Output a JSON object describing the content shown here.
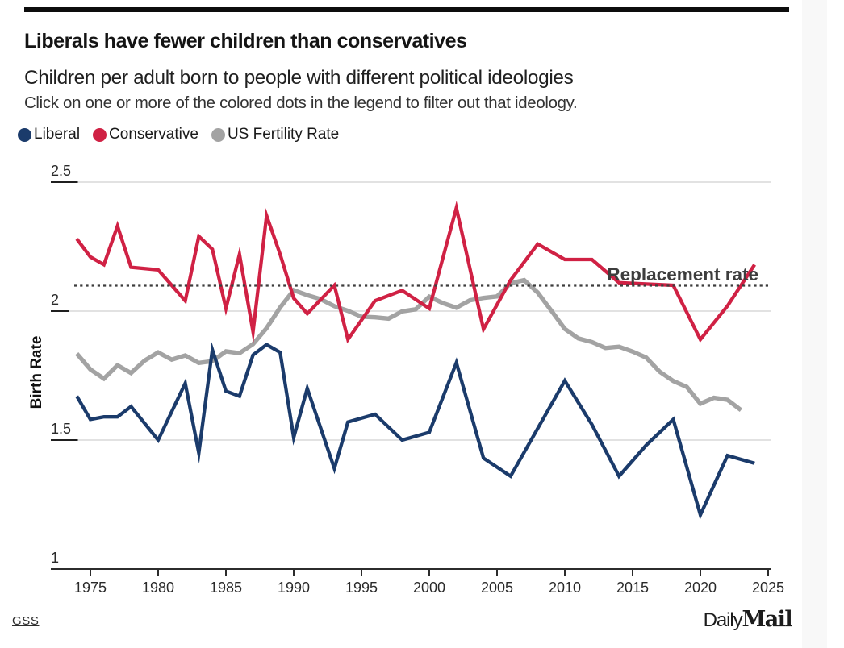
{
  "header": {
    "title": "Liberals have fewer children than conservatives",
    "subtitle": "Children per adult born to people with different political ideologies",
    "note": "Click on one or more of the colored dots in the legend to filter out that ideology."
  },
  "legend": {
    "items": [
      {
        "id": "liberal",
        "label": "Liberal",
        "color": "#1b3b6b"
      },
      {
        "id": "conservative",
        "label": "Conservative",
        "color": "#d02144"
      },
      {
        "id": "us-fertility-rate",
        "label": "US Fertility Rate",
        "color": "#a3a3a3"
      }
    ]
  },
  "chart_data": {
    "type": "line",
    "title": "Liberals have fewer children than conservatives",
    "xlabel": "",
    "ylabel": "Birth Rate",
    "xlim": [
      1973.5,
      2025
    ],
    "ylim": [
      1,
      2.5
    ],
    "grid": true,
    "legend_position": "top",
    "x_ticks": [
      1975,
      1980,
      1985,
      1990,
      1995,
      2000,
      2005,
      2010,
      2015,
      2020,
      2025
    ],
    "y_ticks": [
      1,
      1.5,
      2,
      2.5
    ],
    "y_tick_labels": [
      "1",
      "1.5",
      "2",
      "2.5"
    ],
    "annotation": {
      "label": "Replacement rate",
      "value": 2.1,
      "style": "dotted",
      "color": "#3d3d3d"
    },
    "series": [
      {
        "name": "US Fertility Rate",
        "color": "#a3a3a3",
        "width": 5.4,
        "x": [
          1974,
          1975,
          1976,
          1977,
          1978,
          1979,
          1980,
          1981,
          1982,
          1983,
          1984,
          1985,
          1986,
          1987,
          1988,
          1989,
          1990,
          1991,
          1992,
          1993,
          1994,
          1995,
          1996,
          1997,
          1998,
          1999,
          2000,
          2001,
          2002,
          2003,
          2004,
          2005,
          2006,
          2007,
          2008,
          2009,
          2010,
          2011,
          2012,
          2013,
          2014,
          2015,
          2016,
          2017,
          2018,
          2019,
          2020,
          2021,
          2022,
          2023
        ],
        "y": [
          1.835,
          1.774,
          1.738,
          1.79,
          1.76,
          1.808,
          1.84,
          1.812,
          1.828,
          1.799,
          1.806,
          1.844,
          1.837,
          1.872,
          1.934,
          2.014,
          2.081,
          2.062,
          2.046,
          2.019,
          2.001,
          1.978,
          1.976,
          1.971,
          1.999,
          2.007,
          2.056,
          2.031,
          2.013,
          2.042,
          2.051,
          2.057,
          2.108,
          2.12,
          2.072,
          2.002,
          1.931,
          1.894,
          1.88,
          1.857,
          1.862,
          1.843,
          1.82,
          1.765,
          1.729,
          1.706,
          1.641,
          1.664,
          1.656,
          1.616
        ]
      },
      {
        "name": "Liberal",
        "color": "#1b3b6b",
        "width": 4.3,
        "x": [
          1974,
          1975,
          1976,
          1977,
          1978,
          1980,
          1982,
          1983,
          1984,
          1985,
          1986,
          1987,
          1988,
          1989,
          1990,
          1991,
          1993,
          1994,
          1996,
          1998,
          2000,
          2002,
          2004,
          2006,
          2010,
          2012,
          2014,
          2016,
          2018,
          2020,
          2022,
          2024
        ],
        "y": [
          1.67,
          1.58,
          1.59,
          1.59,
          1.63,
          1.5,
          1.72,
          1.45,
          1.85,
          1.69,
          1.67,
          1.83,
          1.87,
          1.84,
          1.51,
          1.7,
          1.39,
          1.57,
          1.6,
          1.5,
          1.53,
          1.8,
          1.43,
          1.36,
          1.73,
          1.56,
          1.36,
          1.48,
          1.58,
          1.21,
          1.44,
          1.41
        ]
      },
      {
        "name": "Conservative",
        "color": "#d02144",
        "width": 4.3,
        "x": [
          1974,
          1975,
          1976,
          1977,
          1978,
          1980,
          1982,
          1983,
          1984,
          1985,
          1986,
          1987,
          1988,
          1989,
          1990,
          1991,
          1993,
          1994,
          1996,
          1998,
          2000,
          2002,
          2004,
          2006,
          2008,
          2010,
          2012,
          2014,
          2016,
          2018,
          2020,
          2022,
          2024
        ],
        "y": [
          2.28,
          2.21,
          2.18,
          2.33,
          2.17,
          2.16,
          2.04,
          2.29,
          2.24,
          2.01,
          2.22,
          1.92,
          2.37,
          2.22,
          2.05,
          1.99,
          2.1,
          1.89,
          2.04,
          2.08,
          2.01,
          2.4,
          1.93,
          2.12,
          2.26,
          2.2,
          2.2,
          2.11,
          2.105,
          2.1,
          1.89,
          2.02,
          2.18
        ]
      }
    ]
  },
  "axis": {
    "y_title": "Birth Rate",
    "replacement_label": "Replacement rate"
  },
  "footer": {
    "source": "GSS",
    "brand_daily": "Daily",
    "brand_mail": "Mail"
  },
  "colors": {
    "liberal": "#1b3b6b",
    "conservative": "#d02144",
    "us_fertility": "#a3a3a3",
    "grid_light": "#d9d9d9",
    "axis_dark": "#2c2c2c",
    "tick_underline": "#1f1f1f",
    "dotted": "#3d3d3d",
    "top_bar": "#0d0d0d"
  }
}
